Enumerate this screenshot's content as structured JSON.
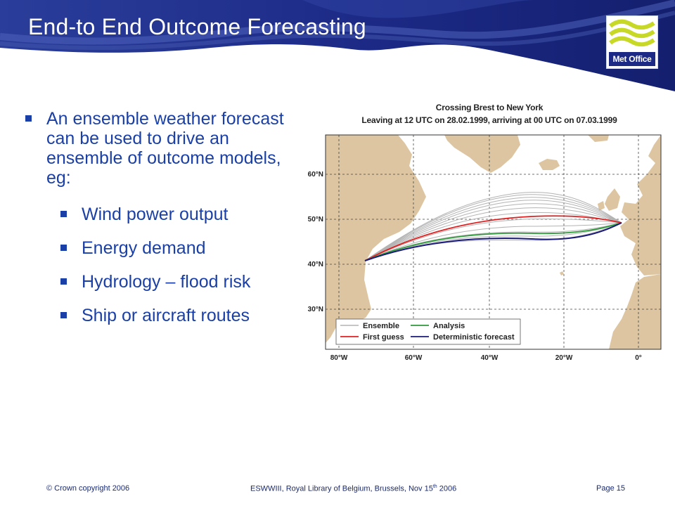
{
  "slide": {
    "title": "End-to End Outcome Forecasting",
    "logo_text": "Met Office"
  },
  "colors": {
    "header_navy": "#1a2580",
    "bullet_blue": "#1a3fa6",
    "land": "#dcc5a0",
    "ensemble": "#b3b3b3",
    "first_guess": "#e02020",
    "analysis": "#2e9a3a",
    "deterministic": "#1a1a7a"
  },
  "bullets": {
    "main": "An ensemble weather forecast can be used to drive an ensemble of outcome models, eg:",
    "sub": [
      "Wind power output",
      "Energy demand",
      "Hydrology – flood risk",
      "Ship or aircraft routes"
    ]
  },
  "figure": {
    "title_line1": "Crossing Brest to New York",
    "title_line2": "Leaving at 12 UTC on 28.02.1999, arriving at 00 UTC on 07.03.1999",
    "lat_labels": [
      "60°N",
      "50°N",
      "40°N",
      "30°N"
    ],
    "lon_labels": [
      "80°W",
      "60°W",
      "40°W",
      "20°W",
      "0°"
    ],
    "legend": [
      "Ensemble",
      "Analysis",
      "First guess",
      "Deterministic forecast"
    ]
  },
  "footer": {
    "copyright": "© Crown copyright 2006",
    "event": "ESWWIII,  Royal Library of Belgium, Brussels, Nov 15",
    "event_sup": "th",
    "event_year": " 2006",
    "page": "Page 15"
  }
}
